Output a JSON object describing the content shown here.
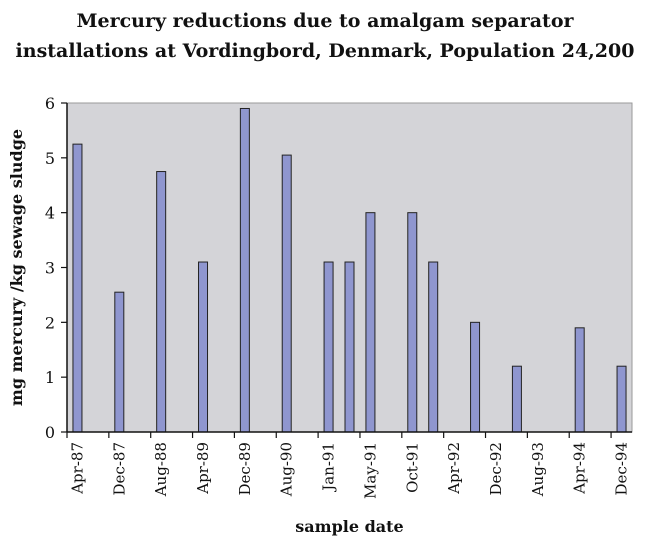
{
  "chart_data": {
    "type": "bar",
    "title_line1": "Mercury reductions due to amalgam separator",
    "title_line2": "installations at Vordingbord, Denmark, Population 24,200",
    "xlabel": "sample date",
    "ylabel": "mg mercury /kg sewage sludge",
    "ylim": [
      0,
      6
    ],
    "yticks": [
      "0",
      "1",
      "2",
      "3",
      "4",
      "5",
      "6"
    ],
    "xtick_labels": [
      "Apr-87",
      "Dec-87",
      "Aug-88",
      "Apr-89",
      "Dec-89",
      "Aug-90",
      "Jan-91",
      "May-91",
      "Oct-91",
      "Apr-92",
      "Dec-92",
      "Aug-93",
      "Apr-94",
      "Dec-94"
    ],
    "slots": 27,
    "bars": [
      {
        "slot": 0,
        "value": 5.25
      },
      {
        "slot": 2,
        "value": 2.55
      },
      {
        "slot": 4,
        "value": 4.75
      },
      {
        "slot": 6,
        "value": 3.1
      },
      {
        "slot": 8,
        "value": 5.9
      },
      {
        "slot": 10,
        "value": 5.05
      },
      {
        "slot": 12,
        "value": 3.1
      },
      {
        "slot": 13,
        "value": 3.1
      },
      {
        "slot": 14,
        "value": 4.0
      },
      {
        "slot": 16,
        "value": 4.0
      },
      {
        "slot": 17,
        "value": 3.1
      },
      {
        "slot": 19,
        "value": 2.0
      },
      {
        "slot": 21,
        "value": 1.2
      },
      {
        "slot": 24,
        "value": 1.9
      },
      {
        "slot": 26,
        "value": 1.2
      }
    ],
    "grid": false,
    "colors": {
      "bar_fill": "#8f96cf",
      "plot_bg": "#d4d4d8",
      "axis": "#111111"
    }
  }
}
